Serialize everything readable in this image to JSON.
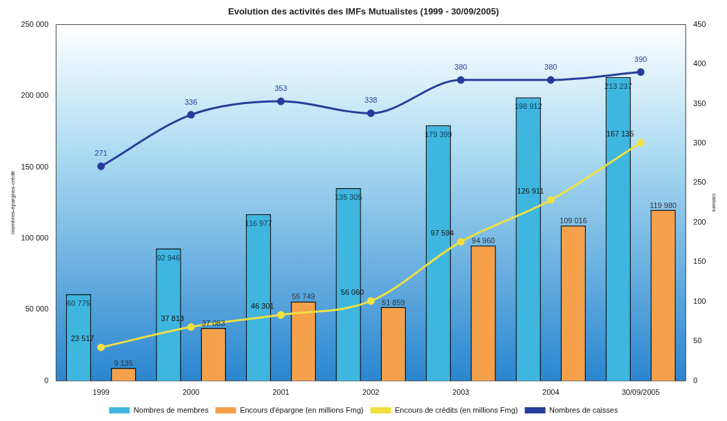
{
  "chart_data": {
    "type": "bar",
    "title": "Evolution des activités des IMFs Mutualistes (1999 - 30/09/2005)",
    "categories": [
      "1999",
      "2000",
      "2001",
      "2002",
      "2003",
      "2004",
      "30/09/2005"
    ],
    "series": [
      {
        "name": "Nombres de membres",
        "color": "#3fb6e0",
        "values": [
          60775,
          92946,
          116977,
          135305,
          179399,
          198912,
          213237
        ],
        "value_labels": [
          "60 775",
          "92 946",
          "116 977",
          "135 305",
          "179 399",
          "198 912",
          "213 237"
        ]
      },
      {
        "name": "Encours d'épargne (en millions Fmg)",
        "color": "#f5a04a",
        "values": [
          9135,
          37083,
          55749,
          51859,
          94960,
          109016,
          119980
        ],
        "value_labels": [
          "9 135",
          "37 083",
          "55 749",
          "51 859",
          "94 960",
          "109 016",
          "119 980"
        ]
      },
      {
        "name": "Encours de crédits (en millions Fmg)",
        "type": "line",
        "color": "#f0e040",
        "values": [
          23517,
          37813,
          46301,
          56060,
          97594,
          126911,
          167135
        ],
        "value_labels": [
          "23 517",
          "37 813",
          "46 301",
          "56 060",
          "97 594",
          "126 911",
          "167 135"
        ]
      },
      {
        "name": "Nombres de caisses",
        "type": "line",
        "axis": "y2",
        "color": "#283c9c",
        "values": [
          271,
          336,
          353,
          338,
          380,
          380,
          390
        ],
        "value_labels": [
          "271",
          "336",
          "353",
          "338",
          "380",
          "380",
          "390"
        ]
      }
    ],
    "ylabel": "membres-épargnes-crédit",
    "y2label": "caisses",
    "ylim": [
      0,
      250000
    ],
    "yticks": [
      {
        "value": 0,
        "label": "0"
      },
      {
        "value": 50000,
        "label": "50 000"
      },
      {
        "value": 100000,
        "label": "100 000"
      },
      {
        "value": 150000,
        "label": "150 000"
      },
      {
        "value": 200000,
        "label": "200 000"
      },
      {
        "value": 250000,
        "label": "250 000"
      }
    ],
    "y2lim": [
      0,
      450
    ],
    "y2ticks": [
      0,
      50,
      100,
      150,
      200,
      250,
      300,
      350,
      400,
      450
    ],
    "grid": false,
    "legend": "bottom",
    "marker": "circle",
    "line_style": "solid"
  }
}
